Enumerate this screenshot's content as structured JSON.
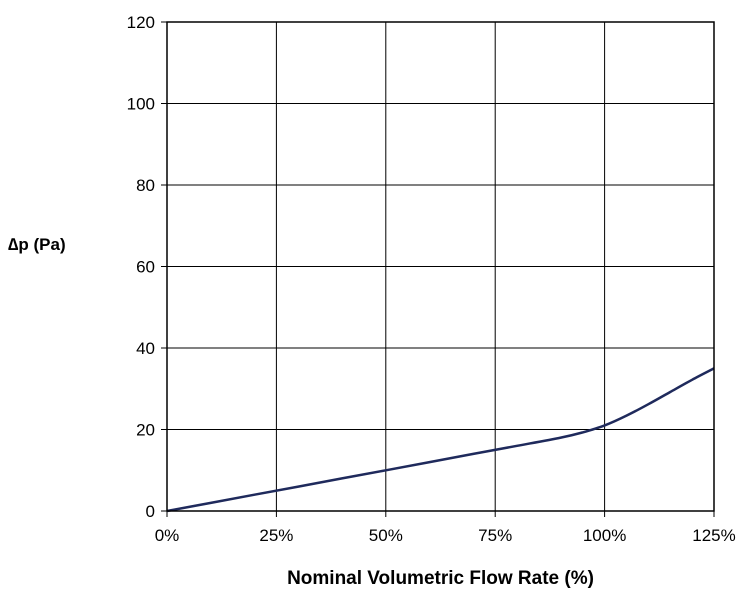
{
  "chart_data": {
    "type": "line",
    "title": "",
    "xlabel": "Nominal Volumetric Flow Rate (%)",
    "ylabel": "∆p (Pa)",
    "x_ticks": [
      "0%",
      "25%",
      "50%",
      "75%",
      "100%",
      "125%"
    ],
    "y_ticks": [
      "0",
      "20",
      "40",
      "60",
      "80",
      "100",
      "120"
    ],
    "xlim": [
      0,
      125
    ],
    "ylim": [
      0,
      120
    ],
    "grid": true,
    "series": [
      {
        "color": "#1f2a5c",
        "x": [
          0,
          10,
          20,
          30,
          40,
          50,
          60,
          70,
          80,
          90,
          95,
          100,
          105,
          110,
          115,
          120,
          125
        ],
        "y": [
          0,
          2,
          4,
          6,
          8,
          10,
          12,
          14,
          16,
          18,
          19.3,
          21,
          23.4,
          26.2,
          29.2,
          32.2,
          35
        ]
      }
    ]
  }
}
